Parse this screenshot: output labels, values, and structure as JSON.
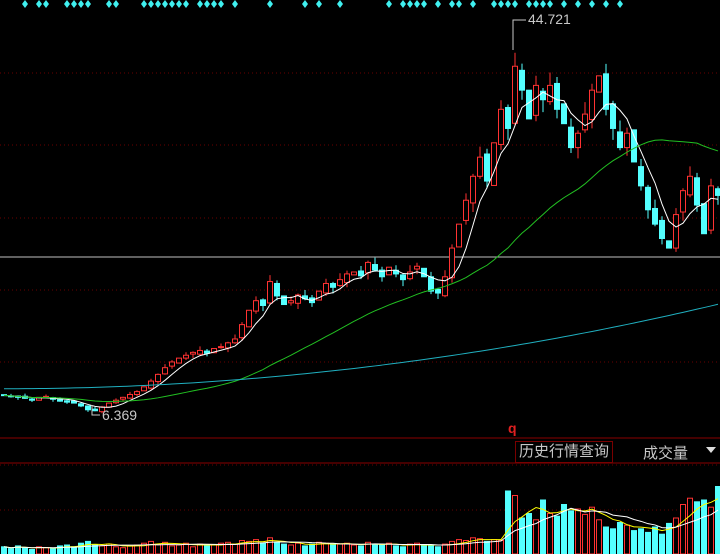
{
  "chart_data": {
    "type": "candlestick",
    "price_max_label": "44.721",
    "price_min_label": "6.369",
    "price_max": 44.721,
    "price_min": 6.369,
    "closes": [
      8.1,
      8.0,
      7.9,
      7.8,
      7.6,
      7.9,
      8.0,
      7.7,
      7.5,
      7.4,
      7.3,
      7.0,
      6.6,
      6.5,
      6.9,
      7.3,
      7.6,
      7.9,
      8.2,
      8.5,
      9.0,
      9.6,
      10.3,
      11.0,
      11.6,
      12.0,
      12.3,
      12.6,
      12.8,
      12.5,
      13.0,
      13.2,
      13.6,
      14.0,
      15.5,
      17.0,
      18.0,
      17.5,
      20.0,
      18.5,
      17.6,
      18.0,
      18.6,
      18.2,
      17.8,
      19.0,
      19.8,
      19.4,
      20.2,
      20.8,
      21.0,
      20.6,
      22.0,
      21.2,
      20.5,
      21.5,
      20.8,
      20.2,
      21.0,
      21.6,
      20.5,
      19.0,
      18.8,
      20.5,
      23.5,
      26.0,
      28.5,
      31.0,
      33.0,
      30.5,
      34.5,
      38.0,
      36.0,
      42.5,
      40.0,
      37.0,
      40.5,
      39.0,
      40.5,
      38.0,
      36.5,
      34.0,
      35.5,
      37.5,
      40.0,
      41.5,
      38.0,
      36.0,
      34.0,
      35.5,
      32.5,
      30.0,
      27.5,
      26.0,
      24.5,
      23.5,
      27.0,
      29.5,
      31.0,
      28.0,
      25.0,
      30.0,
      29.0
    ],
    "volumes": [
      8,
      6,
      9,
      7,
      5,
      8,
      7,
      6,
      9,
      10,
      8,
      12,
      14,
      10,
      9,
      11,
      8,
      7,
      9,
      10,
      12,
      14,
      11,
      13,
      9,
      10,
      12,
      8,
      11,
      9,
      10,
      12,
      13,
      11,
      15,
      14,
      16,
      12,
      18,
      13,
      11,
      10,
      12,
      9,
      11,
      13,
      12,
      10,
      11,
      12,
      10,
      9,
      13,
      11,
      10,
      12,
      9,
      8,
      11,
      12,
      10,
      9,
      8,
      11,
      14,
      16,
      15,
      18,
      17,
      14,
      16,
      15,
      70,
      65,
      40,
      45,
      38,
      60,
      45,
      42,
      55,
      48,
      50,
      44,
      52,
      38,
      30,
      28,
      35,
      32,
      26,
      28,
      24,
      30,
      22,
      34,
      40,
      55,
      62,
      58,
      60,
      52,
      75
    ],
    "signal_markers": [
      3,
      5,
      6,
      9,
      10,
      11,
      12,
      15,
      16,
      20,
      21,
      22,
      23,
      24,
      25,
      26,
      28,
      29,
      30,
      31,
      33,
      38,
      43,
      45,
      48,
      55,
      57,
      58,
      59,
      60,
      62,
      64,
      65,
      67,
      70,
      71,
      72,
      73,
      75,
      76,
      77,
      78,
      80,
      82,
      84,
      86,
      88
    ],
    "ma_periods": [
      5,
      30,
      120
    ],
    "colors": {
      "up": "#ff3232",
      "down": "#54ffff",
      "ma5": "#ffffff",
      "ma30": "#22c022",
      "ma120": "#20b0c0",
      "vol_ma1": "#ffff00",
      "vol_ma2": "#ffffff"
    }
  },
  "volume_panel": {
    "indicator_letter": "q",
    "history_button": "历史行情查询",
    "indicator_name": "成交量"
  }
}
